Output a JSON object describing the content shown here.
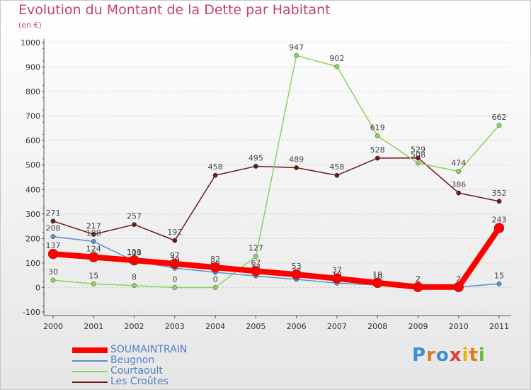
{
  "header": {
    "title": "Evolution du Montant de la Dette par Habitant",
    "unit": "(en €)"
  },
  "logo": {
    "text": "Proxiti",
    "letters": [
      {
        "char": "P",
        "color": "#3a8fd8"
      },
      {
        "char": "r",
        "color": "#e07a1c"
      },
      {
        "char": "o",
        "color": "#3a8fd8"
      },
      {
        "char": "x",
        "color": "#e03a3a"
      },
      {
        "char": "i",
        "color": "#f0b400"
      },
      {
        "char": "t",
        "color": "#e07a1c"
      },
      {
        "char": "i",
        "color": "#6cb83a"
      }
    ]
  },
  "chart_data": {
    "type": "line",
    "title": "Evolution du Montant de la Dette par Habitant",
    "subtitle": "(en €)",
    "xlabel": "",
    "ylabel": "",
    "ylim": [
      -100,
      1000
    ],
    "yticks": [
      "-100",
      "0",
      "100",
      "200",
      "300",
      "400",
      "500",
      "600",
      "700",
      "800",
      "900",
      "1000"
    ],
    "categories": [
      "2000",
      "2001",
      "2002",
      "2003",
      "2004",
      "2005",
      "2006",
      "2007",
      "2008",
      "2009",
      "2010",
      "2011"
    ],
    "grid": "horizontal",
    "legend_position": "bottom-left",
    "series": [
      {
        "name": "Les Croûtes",
        "color": "#6b1a1a",
        "values": [
          271,
          217,
          257,
          192,
          458,
          495,
          489,
          458,
          528,
          529,
          386,
          352
        ],
        "labels": [
          "271",
          "217",
          "257",
          "192",
          "458",
          "495",
          "489",
          "458",
          "528",
          "529",
          "386",
          "352"
        ]
      },
      {
        "name": "Courtaoult",
        "color": "#8ad45a",
        "values": [
          30,
          15,
          8,
          0,
          0,
          127,
          947,
          902,
          619,
          508,
          474,
          662
        ],
        "labels": [
          "30",
          "15",
          "8",
          "0",
          "0",
          "127",
          "947",
          "902",
          "619",
          "508",
          "474",
          "662"
        ]
      },
      {
        "name": "Beugnon",
        "color": "#5a90c8",
        "values": [
          208,
          188,
          108,
          79,
          62,
          47,
          33,
          18,
          10,
          2,
          2,
          15
        ],
        "labels": [
          "208",
          "188",
          "108",
          "79",
          "62",
          "47",
          "33",
          "18",
          "10",
          "2",
          "2",
          "15"
        ]
      },
      {
        "name": "SOUMAINTRAIN",
        "color": "#ff0000",
        "values": [
          137,
          124,
          111,
          97,
          82,
          67,
          53,
          37,
          19,
          2,
          2,
          243
        ],
        "labels": [
          "137",
          "124",
          "111",
          "97",
          "82",
          "67",
          "53",
          "37",
          "19",
          "2",
          "2",
          "243"
        ]
      }
    ],
    "legend": [
      "SOUMAINTRAIN",
      "Beugnon",
      "Courtaoult",
      "Les Croûtes"
    ]
  }
}
